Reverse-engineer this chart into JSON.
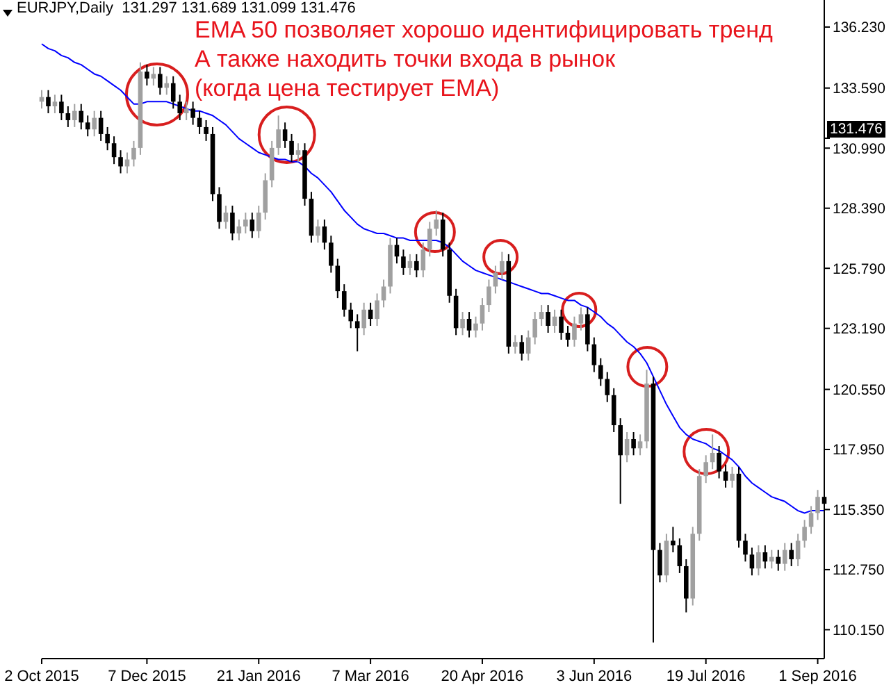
{
  "chart_data": {
    "type": "candlestick",
    "title": "EURJPY,Daily  131.297 131.689 131.099 131.476",
    "annotations": [
      "EMA 50 позволяет хорошо идентифицировать тренд",
      "А также находить точки входа в рынок",
      "(когда цена тестирует EMA)"
    ],
    "ref_lines": [
      {
        "axis": "y",
        "value": 131.476,
        "label": "131.476",
        "color": "#000000"
      }
    ],
    "categories": [
      "2 Oct 2015",
      null,
      null,
      null,
      null,
      null,
      null,
      null,
      null,
      null,
      null,
      null,
      null,
      null,
      null,
      null,
      "7 Dec 2015",
      null,
      null,
      null,
      null,
      null,
      null,
      null,
      null,
      null,
      null,
      null,
      null,
      null,
      null,
      null,
      null,
      "21 Jan 2016",
      null,
      null,
      null,
      null,
      null,
      null,
      null,
      null,
      null,
      null,
      null,
      null,
      null,
      null,
      null,
      null,
      "7 Mar 2016",
      null,
      null,
      null,
      null,
      null,
      null,
      null,
      null,
      null,
      null,
      null,
      null,
      null,
      null,
      null,
      null,
      "20 Apr 2016",
      null,
      null,
      null,
      null,
      null,
      null,
      null,
      null,
      null,
      null,
      null,
      null,
      null,
      null,
      null,
      null,
      "3 Jun 2016",
      null,
      null,
      null,
      null,
      null,
      null,
      null,
      null,
      null,
      null,
      null,
      null,
      null,
      null,
      null,
      null,
      "19 Jul 2016",
      null,
      null,
      null,
      null,
      null,
      null,
      null,
      null,
      null,
      null,
      null,
      null,
      null,
      null,
      null,
      null,
      "1 Sep 2016",
      null
    ],
    "ohlc": [
      [
        133.0,
        133.5,
        132.7,
        133.2
      ],
      [
        133.2,
        133.5,
        132.5,
        132.8
      ],
      [
        132.8,
        133.3,
        132.5,
        133.0
      ],
      [
        133.0,
        133.3,
        132.2,
        132.5
      ],
      [
        132.5,
        132.8,
        131.9,
        132.2
      ],
      [
        132.2,
        132.9,
        131.9,
        132.6
      ],
      [
        132.6,
        132.9,
        131.8,
        132.1
      ],
      [
        132.1,
        132.4,
        131.5,
        131.8
      ],
      [
        131.8,
        132.6,
        131.5,
        132.3
      ],
      [
        132.3,
        132.6,
        131.3,
        131.6
      ],
      [
        131.6,
        131.9,
        130.9,
        131.2
      ],
      [
        131.2,
        131.5,
        130.3,
        130.6
      ],
      [
        130.6,
        130.9,
        129.9,
        130.2
      ],
      [
        130.2,
        130.8,
        129.9,
        130.5
      ],
      [
        130.5,
        131.3,
        130.2,
        131.0
      ],
      [
        131.0,
        134.7,
        130.7,
        134.3
      ],
      [
        134.3,
        134.6,
        133.7,
        134.0
      ],
      [
        134.0,
        134.5,
        133.7,
        134.2
      ],
      [
        134.2,
        134.5,
        133.3,
        133.6
      ],
      [
        133.6,
        134.1,
        133.3,
        133.8
      ],
      [
        133.8,
        134.1,
        132.7,
        133.0
      ],
      [
        133.0,
        133.3,
        132.2,
        132.5
      ],
      [
        132.5,
        133.0,
        132.2,
        132.7
      ],
      [
        132.7,
        133.0,
        132.0,
        132.3
      ],
      [
        132.3,
        132.6,
        131.6,
        131.9
      ],
      [
        131.9,
        132.2,
        131.3,
        131.6
      ],
      [
        131.6,
        131.9,
        128.7,
        129.0
      ],
      [
        129.0,
        129.3,
        127.5,
        127.8
      ],
      [
        127.8,
        128.5,
        127.5,
        128.2
      ],
      [
        128.2,
        128.5,
        127.0,
        127.3
      ],
      [
        127.3,
        127.9,
        127.0,
        127.6
      ],
      [
        127.6,
        128.2,
        127.3,
        127.9
      ],
      [
        127.9,
        128.2,
        127.1,
        127.4
      ],
      [
        127.4,
        128.5,
        127.1,
        128.2
      ],
      [
        128.2,
        129.9,
        127.9,
        129.6
      ],
      [
        129.6,
        131.3,
        129.3,
        131.0
      ],
      [
        131.0,
        132.4,
        130.7,
        131.8
      ],
      [
        131.8,
        132.1,
        131.0,
        131.3
      ],
      [
        131.3,
        131.6,
        130.4,
        130.7
      ],
      [
        130.7,
        131.2,
        130.4,
        130.9
      ],
      [
        130.9,
        131.2,
        128.5,
        128.8
      ],
      [
        128.8,
        129.1,
        126.9,
        127.2
      ],
      [
        127.2,
        127.9,
        126.9,
        127.6
      ],
      [
        127.6,
        127.9,
        126.6,
        126.9
      ],
      [
        126.9,
        127.2,
        125.6,
        125.9
      ],
      [
        125.9,
        126.2,
        124.5,
        124.8
      ],
      [
        124.8,
        125.1,
        123.7,
        124.0
      ],
      [
        124.0,
        124.3,
        123.2,
        123.5
      ],
      [
        123.5,
        123.8,
        122.2,
        123.2
      ],
      [
        123.2,
        124.3,
        122.9,
        124.0
      ],
      [
        124.0,
        124.3,
        123.3,
        123.6
      ],
      [
        123.6,
        124.7,
        123.3,
        124.4
      ],
      [
        124.4,
        125.3,
        124.1,
        125.0
      ],
      [
        125.0,
        127.1,
        124.7,
        126.8
      ],
      [
        126.8,
        127.1,
        126.0,
        126.3
      ],
      [
        126.3,
        126.6,
        125.5,
        125.8
      ],
      [
        125.8,
        126.4,
        125.5,
        126.1
      ],
      [
        126.1,
        126.4,
        125.4,
        125.7
      ],
      [
        125.7,
        126.9,
        125.4,
        126.6
      ],
      [
        126.6,
        127.8,
        126.3,
        127.5
      ],
      [
        127.5,
        128.3,
        127.2,
        127.9
      ],
      [
        127.9,
        128.2,
        126.3,
        126.6
      ],
      [
        126.6,
        126.9,
        124.3,
        124.6
      ],
      [
        124.6,
        124.9,
        122.9,
        123.2
      ],
      [
        123.2,
        123.9,
        122.9,
        123.6
      ],
      [
        123.6,
        123.9,
        122.8,
        123.1
      ],
      [
        123.1,
        123.7,
        122.8,
        123.4
      ],
      [
        123.4,
        124.5,
        123.1,
        124.2
      ],
      [
        124.2,
        125.3,
        123.9,
        125.0
      ],
      [
        125.0,
        125.9,
        124.7,
        125.6
      ],
      [
        125.6,
        126.5,
        125.3,
        126.1
      ],
      [
        126.1,
        126.4,
        122.1,
        122.4
      ],
      [
        122.4,
        122.9,
        122.1,
        122.6
      ],
      [
        122.6,
        122.9,
        121.8,
        122.1
      ],
      [
        122.1,
        123.1,
        121.8,
        122.8
      ],
      [
        122.8,
        123.9,
        122.5,
        123.6
      ],
      [
        123.6,
        124.2,
        123.3,
        123.9
      ],
      [
        123.9,
        124.2,
        123.0,
        123.3
      ],
      [
        123.3,
        124.0,
        123.0,
        123.7
      ],
      [
        123.7,
        124.0,
        122.7,
        123.0
      ],
      [
        123.0,
        123.3,
        122.4,
        122.7
      ],
      [
        122.7,
        123.7,
        122.4,
        123.4
      ],
      [
        123.4,
        124.1,
        123.1,
        123.8
      ],
      [
        123.8,
        124.1,
        122.2,
        122.5
      ],
      [
        122.5,
        122.8,
        121.3,
        121.6
      ],
      [
        121.6,
        121.9,
        120.7,
        121.0
      ],
      [
        121.0,
        121.3,
        120.0,
        120.3
      ],
      [
        120.3,
        120.6,
        118.7,
        119.0
      ],
      [
        119.0,
        119.3,
        115.6,
        117.7
      ],
      [
        117.7,
        118.7,
        117.4,
        118.4
      ],
      [
        118.4,
        118.7,
        117.7,
        118.0
      ],
      [
        118.0,
        118.6,
        117.7,
        118.3
      ],
      [
        118.3,
        121.4,
        118.0,
        120.8
      ],
      [
        120.8,
        121.1,
        109.6,
        113.6
      ],
      [
        113.6,
        113.9,
        112.2,
        112.5
      ],
      [
        112.5,
        114.3,
        112.2,
        114.0
      ],
      [
        114.0,
        114.6,
        113.5,
        113.8
      ],
      [
        113.8,
        114.1,
        112.6,
        112.9
      ],
      [
        112.9,
        113.2,
        110.9,
        111.5
      ],
      [
        111.5,
        114.6,
        111.2,
        114.3
      ],
      [
        114.3,
        117.1,
        114.0,
        116.8
      ],
      [
        116.8,
        117.7,
        116.5,
        117.4
      ],
      [
        117.4,
        118.6,
        117.1,
        117.8
      ],
      [
        117.8,
        118.1,
        116.7,
        117.0
      ],
      [
        117.0,
        117.3,
        116.3,
        116.6
      ],
      [
        116.6,
        117.2,
        116.3,
        116.9
      ],
      [
        116.9,
        117.2,
        113.7,
        114.0
      ],
      [
        114.0,
        114.3,
        113.1,
        113.4
      ],
      [
        113.4,
        113.7,
        112.5,
        112.8
      ],
      [
        112.8,
        113.8,
        112.5,
        113.5
      ],
      [
        113.5,
        113.8,
        112.8,
        113.1
      ],
      [
        113.1,
        113.6,
        112.8,
        113.3
      ],
      [
        113.3,
        113.6,
        112.7,
        113.0
      ],
      [
        113.0,
        113.9,
        112.7,
        113.6
      ],
      [
        113.6,
        113.9,
        112.9,
        113.2
      ],
      [
        113.2,
        114.3,
        112.9,
        114.0
      ],
      [
        114.0,
        114.9,
        113.7,
        114.6
      ],
      [
        114.6,
        115.5,
        114.3,
        115.2
      ],
      [
        115.2,
        116.2,
        114.9,
        115.9
      ],
      [
        115.9,
        116.2,
        115.3,
        115.6
      ]
    ],
    "colors": [
      "#a0a0a0",
      "#000000",
      "#a0a0a0",
      "#000000",
      "#000000",
      "#a0a0a0",
      "#000000",
      "#000000",
      "#a0a0a0",
      "#000000",
      "#000000",
      "#000000",
      "#000000",
      "#a0a0a0",
      "#a0a0a0",
      "#a0a0a0",
      "#000000",
      "#a0a0a0",
      "#000000",
      "#a0a0a0",
      "#000000",
      "#000000",
      "#a0a0a0",
      "#000000",
      "#000000",
      "#000000",
      "#000000",
      "#000000",
      "#a0a0a0",
      "#000000",
      "#a0a0a0",
      "#a0a0a0",
      "#000000",
      "#a0a0a0",
      "#a0a0a0",
      "#a0a0a0",
      "#a0a0a0",
      "#000000",
      "#000000",
      "#a0a0a0",
      "#000000",
      "#000000",
      "#a0a0a0",
      "#000000",
      "#000000",
      "#000000",
      "#000000",
      "#000000",
      "#000000",
      "#a0a0a0",
      "#000000",
      "#a0a0a0",
      "#a0a0a0",
      "#a0a0a0",
      "#000000",
      "#000000",
      "#a0a0a0",
      "#000000",
      "#a0a0a0",
      "#a0a0a0",
      "#a0a0a0",
      "#000000",
      "#000000",
      "#000000",
      "#a0a0a0",
      "#000000",
      "#a0a0a0",
      "#a0a0a0",
      "#a0a0a0",
      "#a0a0a0",
      "#a0a0a0",
      "#000000",
      "#a0a0a0",
      "#000000",
      "#a0a0a0",
      "#a0a0a0",
      "#a0a0a0",
      "#000000",
      "#a0a0a0",
      "#000000",
      "#000000",
      "#a0a0a0",
      "#a0a0a0",
      "#000000",
      "#000000",
      "#000000",
      "#000000",
      "#000000",
      "#000000",
      "#a0a0a0",
      "#000000",
      "#a0a0a0",
      "#a0a0a0",
      "#000000",
      "#000000",
      "#a0a0a0",
      "#000000",
      "#000000",
      "#000000",
      "#a0a0a0",
      "#a0a0a0",
      "#a0a0a0",
      "#a0a0a0",
      "#000000",
      "#000000",
      "#a0a0a0",
      "#000000",
      "#000000",
      "#000000",
      "#a0a0a0",
      "#000000",
      "#a0a0a0",
      "#000000",
      "#a0a0a0",
      "#000000",
      "#a0a0a0",
      "#a0a0a0",
      "#a0a0a0",
      "#a0a0a0",
      "#000000"
    ],
    "series": [
      {
        "type": "line",
        "color": "#0000ff",
        "values": [
          135.5,
          135.3,
          135.2,
          135.0,
          134.9,
          134.7,
          134.6,
          134.4,
          134.2,
          134.1,
          133.9,
          133.7,
          133.5,
          133.2,
          132.9,
          132.9,
          133.0,
          133.0,
          133.0,
          133.0,
          132.9,
          132.8,
          132.7,
          132.6,
          132.6,
          132.5,
          132.4,
          132.2,
          132.0,
          131.7,
          131.4,
          131.2,
          131.0,
          130.8,
          130.7,
          130.6,
          130.5,
          130.5,
          130.4,
          130.4,
          130.2,
          129.9,
          129.7,
          129.4,
          129.1,
          128.7,
          128.3,
          128.0,
          127.7,
          127.5,
          127.4,
          127.3,
          127.3,
          127.2,
          127.1,
          127.1,
          127.0,
          127.0,
          127.0,
          127.0,
          127.0,
          126.9,
          126.7,
          126.4,
          126.1,
          125.9,
          125.7,
          125.6,
          125.5,
          125.4,
          125.3,
          125.2,
          125.1,
          125.0,
          124.9,
          124.8,
          124.7,
          124.7,
          124.6,
          124.5,
          124.4,
          124.4,
          124.2,
          124.1,
          123.9,
          123.7,
          123.4,
          123.2,
          122.9,
          122.6,
          122.4,
          122.1,
          121.7,
          121.1,
          120.5,
          119.9,
          119.4,
          118.9,
          118.6,
          118.4,
          118.3,
          118.2,
          118.0,
          117.9,
          117.7,
          117.5,
          117.2,
          116.8,
          116.5,
          116.3,
          116.1,
          115.9,
          115.8,
          115.7,
          115.5,
          115.3,
          115.2,
          115.3,
          115.3,
          115.3
        ]
      }
    ],
    "ylim": [
      108.9,
      137.4
    ],
    "yticks": [
      {
        "value": 110.15,
        "label": "110.150"
      },
      {
        "value": 112.75,
        "label": "112.750"
      },
      {
        "value": 115.35,
        "label": "115.350"
      },
      {
        "value": 117.95,
        "label": "117.950"
      },
      {
        "value": 120.55,
        "label": "120.550"
      },
      {
        "value": 123.19,
        "label": "123.190"
      },
      {
        "value": 125.79,
        "label": "125.790"
      },
      {
        "value": 128.39,
        "label": "128.390"
      },
      {
        "value": 130.99,
        "label": "130.990"
      },
      {
        "value": 133.59,
        "label": "133.590"
      },
      {
        "value": 136.23,
        "label": "136.230"
      }
    ],
    "grid": false
  }
}
